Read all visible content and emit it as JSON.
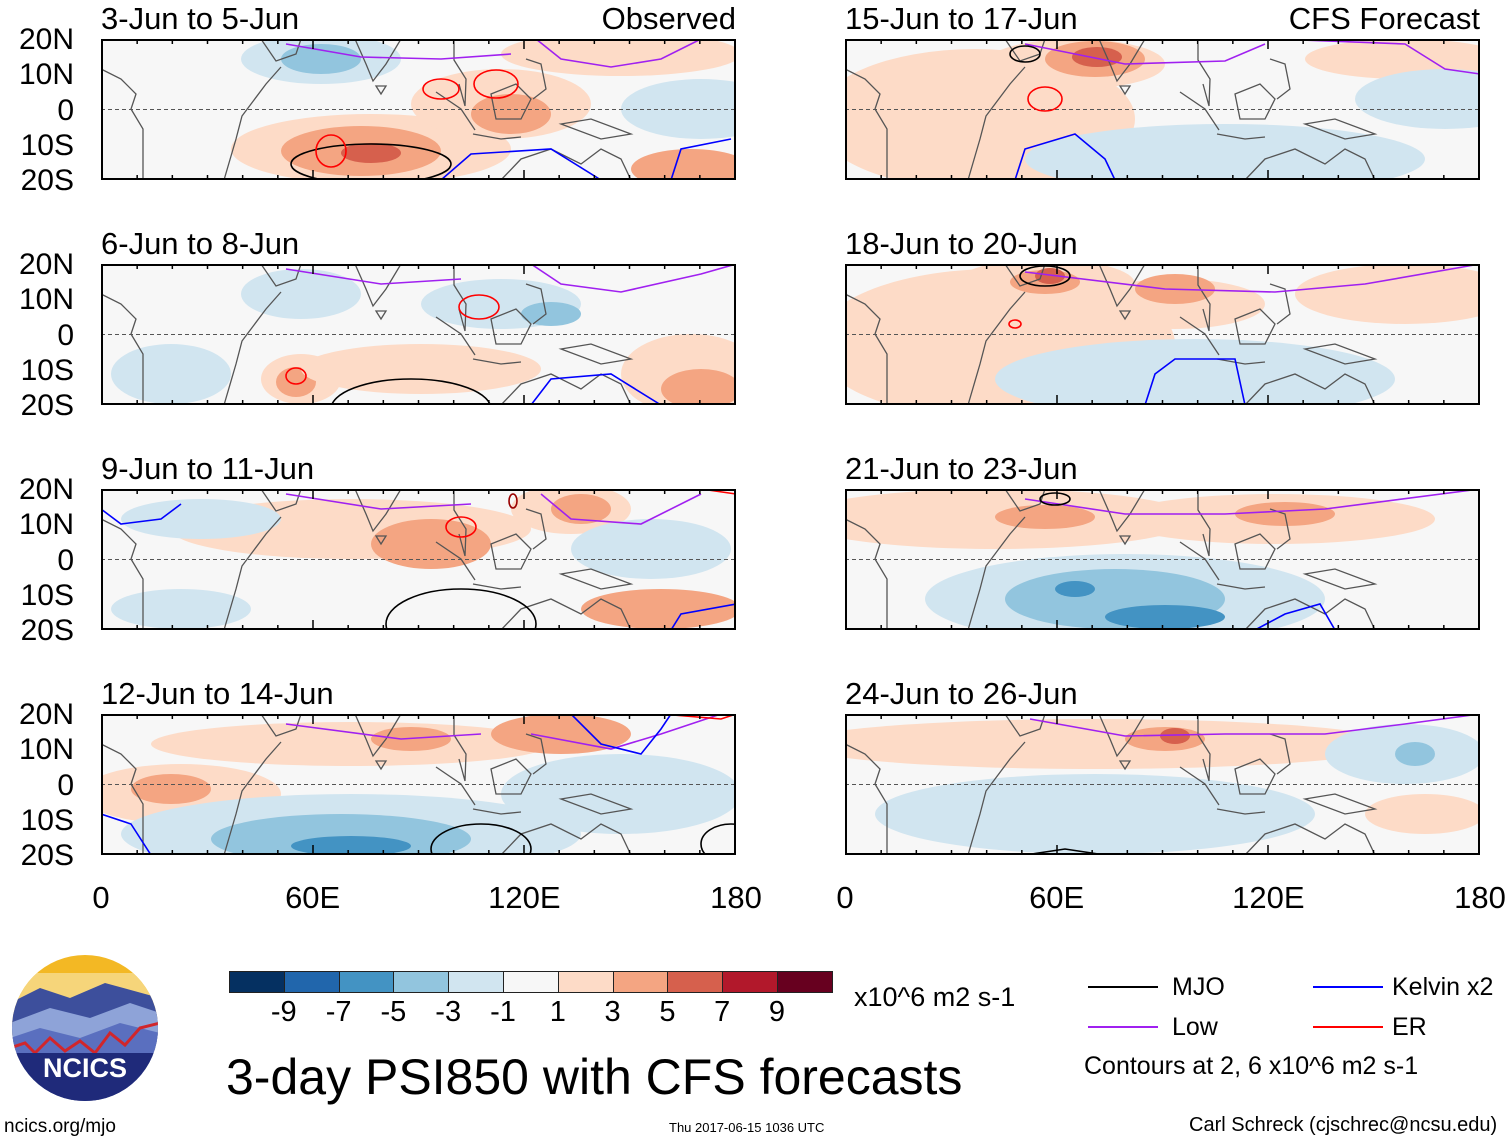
{
  "panels": [
    {
      "title": "3-Jun to 5-Jun",
      "label": "Observed"
    },
    {
      "title": "15-Jun to 17-Jun",
      "label": "CFS Forecast"
    },
    {
      "title": "6-Jun to 8-Jun",
      "label": ""
    },
    {
      "title": "18-Jun to 20-Jun",
      "label": ""
    },
    {
      "title": "9-Jun to 11-Jun",
      "label": ""
    },
    {
      "title": "21-Jun to 23-Jun",
      "label": ""
    },
    {
      "title": "12-Jun to 14-Jun",
      "label": ""
    },
    {
      "title": "24-Jun to 26-Jun",
      "label": ""
    }
  ],
  "lat_labels": [
    "20N",
    "10N",
    "0",
    "10S",
    "20S"
  ],
  "lon_labels": [
    "0",
    "60E",
    "120E",
    "180"
  ],
  "colorbar": {
    "colors": [
      "#053061",
      "#2166ac",
      "#4393c3",
      "#92c5de",
      "#d1e5f0",
      "#f7f7f7",
      "#fddbc7",
      "#f4a582",
      "#d6604d",
      "#b2182b",
      "#67001f"
    ],
    "ticks": [
      "-9",
      "-7",
      "-5",
      "-3",
      "-1",
      "1",
      "3",
      "5",
      "7",
      "9"
    ],
    "units": "x10^6 m2 s-1"
  },
  "legend": {
    "items": [
      {
        "label": "MJO",
        "color": "#000000"
      },
      {
        "label": "Kelvin x2",
        "color": "#0000ff"
      },
      {
        "label": "Low",
        "color": "#a020f0"
      },
      {
        "label": "ER",
        "color": "#ff0000"
      }
    ],
    "note": "Contours at 2, 6 x10^6 m2 s-1"
  },
  "title": "3-day PSI850 with CFS forecasts",
  "logo_text": "NCICS",
  "footer": {
    "url": "ncics.org/mjo",
    "timestamp": "Thu 2017-06-15 1036 UTC",
    "author": "Carl Schreck (cjschrec@ncsu.edu)"
  }
}
